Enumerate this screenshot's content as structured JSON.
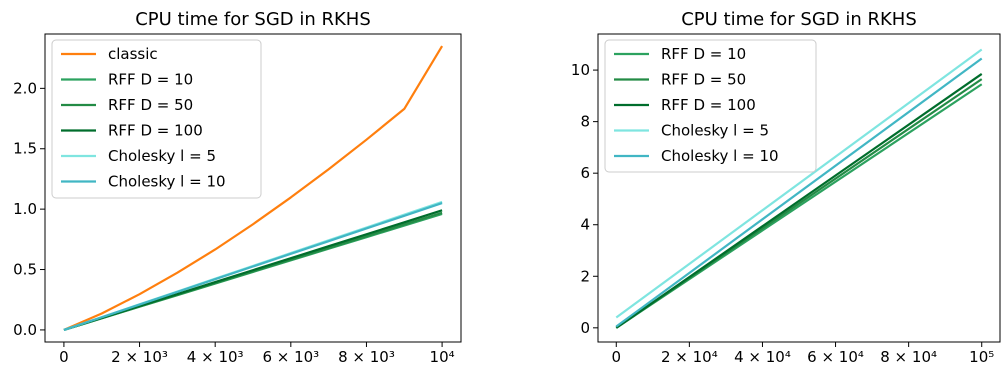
{
  "chart_data": [
    {
      "type": "line",
      "title": "CPU time for SGD in RKHS",
      "xlabel": "",
      "ylabel": "",
      "xlim": [
        -500,
        10500
      ],
      "ylim": [
        -0.1,
        2.45
      ],
      "x_ticks": [
        {
          "value": 0,
          "label": "0"
        },
        {
          "value": 2000,
          "label": "2 × 10³"
        },
        {
          "value": 4000,
          "label": "4 × 10³"
        },
        {
          "value": 6000,
          "label": "6 × 10³"
        },
        {
          "value": 8000,
          "label": "8 × 10³"
        },
        {
          "value": 10000,
          "label": "10⁴"
        }
      ],
      "y_ticks": [
        {
          "value": 0.0,
          "label": "0.0"
        },
        {
          "value": 0.5,
          "label": "0.5"
        },
        {
          "value": 1.0,
          "label": "1.0"
        },
        {
          "value": 1.5,
          "label": "1.5"
        },
        {
          "value": 2.0,
          "label": "2.0"
        }
      ],
      "grid": false,
      "legend": "top-left",
      "x": [
        0,
        1000,
        2000,
        3000,
        4000,
        5000,
        6000,
        7000,
        8000,
        9000,
        10000
      ],
      "series": [
        {
          "name": "classic",
          "color": "#ff7f0e",
          "values": [
            0.0,
            0.136,
            0.296,
            0.474,
            0.666,
            0.875,
            1.097,
            1.33,
            1.575,
            1.83,
            2.35
          ]
        },
        {
          "name": "RFF D = 10",
          "color": "#2ca25f",
          "values": [
            0.0,
            0.096,
            0.192,
            0.288,
            0.384,
            0.48,
            0.576,
            0.672,
            0.768,
            0.864,
            0.96
          ]
        },
        {
          "name": "RFF D = 50",
          "color": "#238b45",
          "values": [
            0.0,
            0.097,
            0.194,
            0.291,
            0.388,
            0.485,
            0.582,
            0.679,
            0.776,
            0.873,
            0.97
          ]
        },
        {
          "name": "RFF D = 100",
          "color": "#006d2c",
          "values": [
            0.0,
            0.099,
            0.198,
            0.297,
            0.396,
            0.495,
            0.594,
            0.693,
            0.792,
            0.891,
            0.99
          ]
        },
        {
          "name": "Cholesky l = 5",
          "color": "#7fe5e0",
          "values": [
            0.0,
            0.106,
            0.212,
            0.318,
            0.424,
            0.53,
            0.636,
            0.742,
            0.848,
            0.954,
            1.06
          ]
        },
        {
          "name": "Cholesky l = 10",
          "color": "#41b6c4",
          "values": [
            0.0,
            0.105,
            0.21,
            0.315,
            0.42,
            0.525,
            0.63,
            0.735,
            0.84,
            0.945,
            1.05
          ]
        }
      ]
    },
    {
      "type": "line",
      "title": "CPU time for SGD in RKHS",
      "xlabel": "",
      "ylabel": "",
      "xlim": [
        -5000,
        105000
      ],
      "ylim": [
        -0.55,
        11.4
      ],
      "x_ticks": [
        {
          "value": 0,
          "label": "0"
        },
        {
          "value": 20000,
          "label": "2 × 10⁴"
        },
        {
          "value": 40000,
          "label": "4 × 10⁴"
        },
        {
          "value": 60000,
          "label": "6 × 10⁴"
        },
        {
          "value": 80000,
          "label": "8 × 10⁴"
        },
        {
          "value": 100000,
          "label": "10⁵"
        }
      ],
      "y_ticks": [
        {
          "value": 0,
          "label": "0"
        },
        {
          "value": 2,
          "label": "2"
        },
        {
          "value": 4,
          "label": "4"
        },
        {
          "value": 6,
          "label": "6"
        },
        {
          "value": 8,
          "label": "8"
        },
        {
          "value": 10,
          "label": "10"
        }
      ],
      "grid": false,
      "legend": "top-left",
      "x": [
        0,
        100000
      ],
      "series": [
        {
          "name": "RFF D = 10",
          "color": "#2ca25f",
          "values": [
            0.0,
            9.45
          ]
        },
        {
          "name": "RFF D = 50",
          "color": "#238b45",
          "values": [
            0.0,
            9.65
          ]
        },
        {
          "name": "RFF D = 100",
          "color": "#006d2c",
          "values": [
            0.0,
            9.85
          ]
        },
        {
          "name": "Cholesky l = 5",
          "color": "#7fe5e0",
          "values": [
            0.4,
            10.8
          ]
        },
        {
          "name": "Cholesky l = 10",
          "color": "#41b6c4",
          "values": [
            0.05,
            10.45
          ]
        }
      ]
    }
  ]
}
